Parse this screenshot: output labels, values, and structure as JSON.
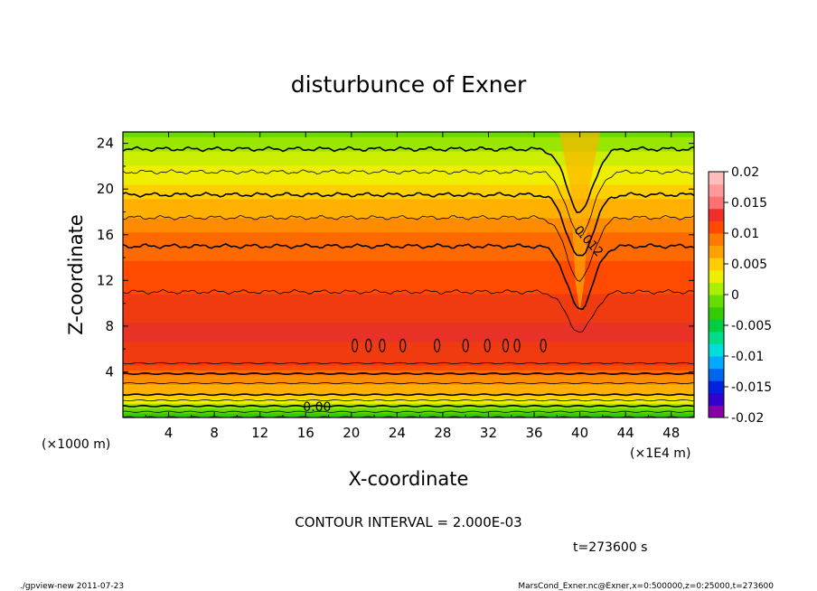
{
  "chart_data": {
    "type": "heatmap",
    "title": "disturbunce of Exner",
    "xlabel": "X-coordinate",
    "ylabel": "Z-coordinate",
    "x_unit": "(×1E4 m)",
    "y_unit": "(×1000 m)",
    "x_ticks": [
      4,
      8,
      12,
      16,
      20,
      24,
      28,
      32,
      36,
      40,
      44,
      48
    ],
    "y_ticks": [
      4,
      8,
      12,
      16,
      20,
      24
    ],
    "xlim": [
      0,
      50
    ],
    "ylim": [
      0,
      25
    ],
    "colorbar": {
      "tick_labels": [
        "0.02",
        "0.015",
        "0.01",
        "0.005",
        "0",
        "-0.005",
        "-0.01",
        "-0.015",
        "-0.02"
      ],
      "range": [
        -0.02,
        0.02
      ]
    },
    "levels": [
      0.0,
      0.002,
      0.004,
      0.006,
      0.008,
      0.01,
      0.012,
      0.014,
      0.016
    ],
    "level_colors": [
      "#33cc00",
      "#66dd00",
      "#99e600",
      "#ccee00",
      "#eeee00",
      "#ffd000",
      "#ffb000",
      "#ff8c00",
      "#ff6a00",
      "#ff4a00",
      "#f03a10",
      "#e83228"
    ],
    "profile": {
      "z": [
        0,
        0.5,
        1,
        1.5,
        2,
        2.5,
        3,
        3.5,
        4,
        4.5,
        5,
        6,
        7,
        8,
        9,
        10,
        11,
        12,
        13,
        14,
        15,
        16,
        17,
        18,
        19,
        20,
        21,
        22,
        23,
        24,
        25
      ],
      "value": [
        0.0,
        0.002,
        0.004,
        0.006,
        0.008,
        0.009,
        0.01,
        0.011,
        0.0125,
        0.0135,
        0.0145,
        0.015,
        0.0155,
        0.0155,
        0.015,
        0.0145,
        0.014,
        0.0135,
        0.013,
        0.0125,
        0.012,
        0.0115,
        0.0105,
        0.0095,
        0.0085,
        0.0075,
        0.0065,
        0.0055,
        0.0045,
        0.0035,
        0.0025
      ]
    },
    "contour_labels": [
      {
        "text": "0.012",
        "x": 40.5,
        "z": 15.2
      },
      {
        "text": "0.00",
        "x": 17.0,
        "z": 0.55
      }
    ],
    "annotations": [
      "CONTOUR INTERVAL = 2.000E-03",
      "t=273600 s"
    ]
  },
  "footer": {
    "left": "./gpview-new  2011-07-23",
    "right": "MarsCond_Exner.nc@Exner,x=0:500000,z=0:25000,t=273600"
  }
}
